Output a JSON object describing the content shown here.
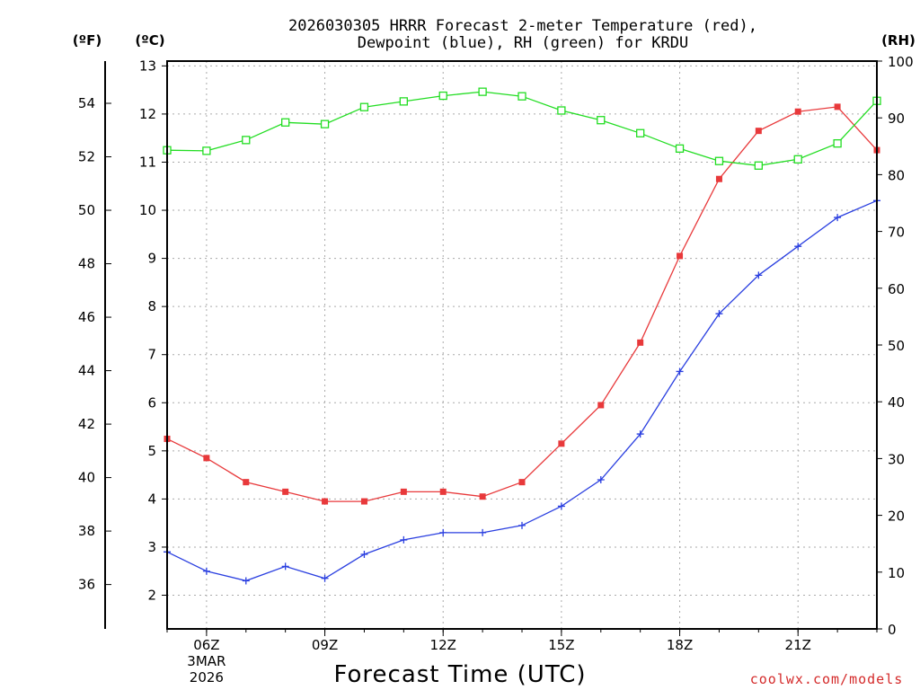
{
  "chart_data": {
    "type": "line",
    "title_line1": "2026030305 HRRR Forecast 2-meter Temperature (red),",
    "title_line2": "Dewpoint (blue), RH (green) for KRDU",
    "xlabel": "Forecast Time (UTC)",
    "attribution": "coolwx.com/models",
    "units": {
      "fahrenheit": "(ºF)",
      "celsius": "(ºC)",
      "rh": "(RH)"
    },
    "x_hours": [
      5,
      6,
      7,
      8,
      9,
      10,
      11,
      12,
      13,
      14,
      15,
      16,
      17,
      18,
      19,
      20,
      21,
      22,
      23
    ],
    "x_ticks": [
      {
        "hour": 6,
        "label": "06Z",
        "sub1": "3MAR",
        "sub2": "2026"
      },
      {
        "hour": 9,
        "label": "09Z"
      },
      {
        "hour": 12,
        "label": "12Z"
      },
      {
        "hour": 15,
        "label": "15Z"
      },
      {
        "hour": 18,
        "label": "18Z"
      },
      {
        "hour": 21,
        "label": "21Z"
      }
    ],
    "xlim": [
      5,
      23
    ],
    "ylim_celsius": [
      1.3,
      13.1
    ],
    "ylim_rh": [
      0,
      100
    ],
    "celsius_ticks": [
      "2",
      "3",
      "4",
      "5",
      "6",
      "7",
      "8",
      "9",
      "10",
      "11",
      "12",
      "13"
    ],
    "fahrenheit_ticks": [
      "36",
      "38",
      "40",
      "42",
      "44",
      "46",
      "48",
      "50",
      "52",
      "54"
    ],
    "rh_ticks": [
      "0",
      "10",
      "20",
      "30",
      "40",
      "50",
      "60",
      "70",
      "80",
      "90",
      "100"
    ],
    "series": [
      {
        "name": "Temperature",
        "color": "#e8393b",
        "marker": "filled-square",
        "axis": "celsius",
        "values": [
          5.25,
          4.85,
          4.35,
          4.15,
          3.95,
          3.95,
          4.15,
          4.15,
          4.05,
          4.35,
          5.15,
          5.95,
          7.25,
          9.05,
          10.65,
          11.65,
          12.05,
          12.15,
          11.25
        ]
      },
      {
        "name": "Dewpoint",
        "color": "#2a3fe0",
        "marker": "plus",
        "axis": "celsius",
        "values": [
          2.9,
          2.5,
          2.3,
          2.6,
          2.35,
          2.85,
          3.15,
          3.3,
          3.3,
          3.45,
          3.85,
          4.4,
          5.35,
          6.65,
          7.85,
          8.65,
          9.25,
          9.85,
          10.2
        ]
      },
      {
        "name": "RH",
        "color": "#22dd22",
        "marker": "open-square",
        "axis": "rh",
        "values": [
          84.3,
          84.2,
          86.1,
          89.2,
          88.9,
          91.9,
          92.9,
          93.9,
          94.6,
          93.8,
          91.3,
          89.6,
          87.3,
          84.6,
          82.4,
          81.6,
          82.7,
          85.5,
          93.0
        ]
      }
    ]
  }
}
